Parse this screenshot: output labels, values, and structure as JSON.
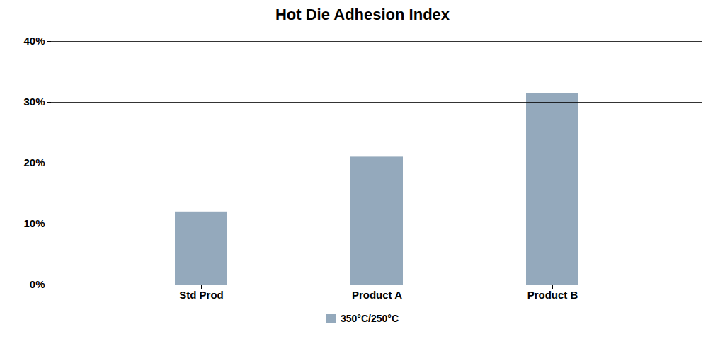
{
  "chart_data": {
    "type": "bar",
    "title": "Hot Die Adhesion Index",
    "categories": [
      "Std Prod",
      "Product A",
      "Product B"
    ],
    "series": [
      {
        "name": "350°C/250°C",
        "color": "#94a9bc",
        "values": [
          0.12,
          0.21,
          0.315
        ]
      }
    ],
    "ylim": [
      0,
      0.4
    ],
    "yticks": [
      {
        "value": 0.0,
        "label": "0%"
      },
      {
        "value": 0.1,
        "label": "10%"
      },
      {
        "value": 0.2,
        "label": "20%"
      },
      {
        "value": 0.3,
        "label": "30%"
      },
      {
        "value": 0.4,
        "label": "40%"
      }
    ],
    "grid": true,
    "legend": "bottom"
  }
}
